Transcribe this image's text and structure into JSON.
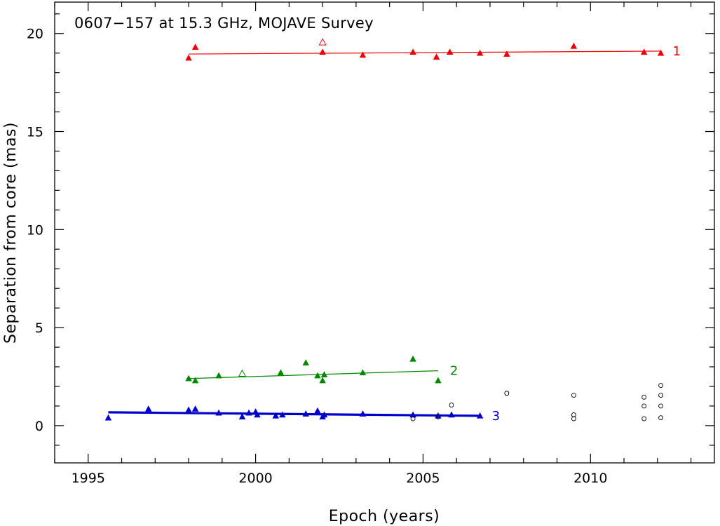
{
  "chart_data": {
    "type": "scatter",
    "title": "0607−157 at 15.3 GHz, MOJAVE Survey",
    "xlabel": "Epoch (years)",
    "ylabel": "Separation from core (mas)",
    "xlim": [
      1994.0,
      2013.7
    ],
    "ylim": [
      -1.9,
      21.6
    ],
    "x_ticks": [
      1995,
      2000,
      2005,
      2010
    ],
    "y_ticks": [
      0,
      5,
      10,
      15,
      20
    ],
    "x_tick_labels": [
      "1995",
      "2000",
      "2005",
      "2010"
    ],
    "y_tick_labels": [
      "0",
      "5",
      "10",
      "15",
      "20"
    ],
    "grid": false,
    "legend": "none",
    "series": [
      {
        "name": "1",
        "color": "#ee0000",
        "points": [
          {
            "x": 1998.0,
            "y": 18.75
          },
          {
            "x": 1998.2,
            "y": 19.3
          },
          {
            "x": 2002.0,
            "y": 19.05
          },
          {
            "x": 2003.2,
            "y": 18.9
          },
          {
            "x": 2004.7,
            "y": 19.05
          },
          {
            "x": 2005.4,
            "y": 18.8
          },
          {
            "x": 2005.8,
            "y": 19.05
          },
          {
            "x": 2006.7,
            "y": 19.0
          },
          {
            "x": 2007.5,
            "y": 18.95
          },
          {
            "x": 2009.5,
            "y": 19.35
          },
          {
            "x": 2011.6,
            "y": 19.05
          },
          {
            "x": 2012.1,
            "y": 19.0
          }
        ],
        "open_points": [
          {
            "x": 2002.0,
            "y": 19.55
          }
        ],
        "fit": {
          "x": [
            1998.0,
            2012.1
          ],
          "y": [
            18.95,
            19.1
          ]
        }
      },
      {
        "name": "2",
        "color": "#008800",
        "points": [
          {
            "x": 1998.0,
            "y": 2.4
          },
          {
            "x": 1998.2,
            "y": 2.3
          },
          {
            "x": 1998.9,
            "y": 2.55
          },
          {
            "x": 2000.75,
            "y": 2.7
          },
          {
            "x": 2001.5,
            "y": 3.2
          },
          {
            "x": 2001.85,
            "y": 2.55
          },
          {
            "x": 2002.0,
            "y": 2.3
          },
          {
            "x": 2002.05,
            "y": 2.6
          },
          {
            "x": 2003.2,
            "y": 2.7
          },
          {
            "x": 2004.7,
            "y": 3.4
          },
          {
            "x": 2005.45,
            "y": 2.3
          }
        ],
        "open_points": [
          {
            "x": 1999.6,
            "y": 2.65
          }
        ],
        "fit": {
          "x": [
            1998.0,
            2005.45
          ],
          "y": [
            2.4,
            2.8
          ]
        }
      },
      {
        "name": "3",
        "color": "#0000cc",
        "points": [
          {
            "x": 1995.6,
            "y": 0.4
          },
          {
            "x": 1996.8,
            "y": 0.85
          },
          {
            "x": 1998.0,
            "y": 0.8
          },
          {
            "x": 1998.2,
            "y": 0.85
          },
          {
            "x": 1998.9,
            "y": 0.65
          },
          {
            "x": 1999.6,
            "y": 0.45
          },
          {
            "x": 1999.8,
            "y": 0.65
          },
          {
            "x": 2000.0,
            "y": 0.7
          },
          {
            "x": 2000.05,
            "y": 0.55
          },
          {
            "x": 2000.6,
            "y": 0.5
          },
          {
            "x": 2000.8,
            "y": 0.55
          },
          {
            "x": 2001.5,
            "y": 0.6
          },
          {
            "x": 2001.85,
            "y": 0.75
          },
          {
            "x": 2002.0,
            "y": 0.45
          },
          {
            "x": 2002.05,
            "y": 0.55
          },
          {
            "x": 2003.2,
            "y": 0.6
          },
          {
            "x": 2004.7,
            "y": 0.55
          },
          {
            "x": 2005.45,
            "y": 0.5
          },
          {
            "x": 2005.85,
            "y": 0.55
          },
          {
            "x": 2006.7,
            "y": 0.5
          }
        ],
        "open_points": [],
        "fit": {
          "x": [
            1995.6,
            2006.7
          ],
          "y": [
            0.68,
            0.5
          ]
        }
      }
    ],
    "unassigned_points": {
      "color": "#000000",
      "marker": "open-circle",
      "points": [
        {
          "x": 2004.7,
          "y": 0.35
        },
        {
          "x": 2005.45,
          "y": 0.45
        },
        {
          "x": 2005.85,
          "y": 1.05
        },
        {
          "x": 2007.5,
          "y": 1.65
        },
        {
          "x": 2009.5,
          "y": 1.55
        },
        {
          "x": 2009.5,
          "y": 0.55
        },
        {
          "x": 2009.5,
          "y": 0.35
        },
        {
          "x": 2011.6,
          "y": 1.45
        },
        {
          "x": 2011.6,
          "y": 1.0
        },
        {
          "x": 2011.6,
          "y": 0.35
        },
        {
          "x": 2012.1,
          "y": 2.05
        },
        {
          "x": 2012.1,
          "y": 1.55
        },
        {
          "x": 2012.1,
          "y": 1.0
        },
        {
          "x": 2012.1,
          "y": 0.4
        }
      ]
    }
  }
}
